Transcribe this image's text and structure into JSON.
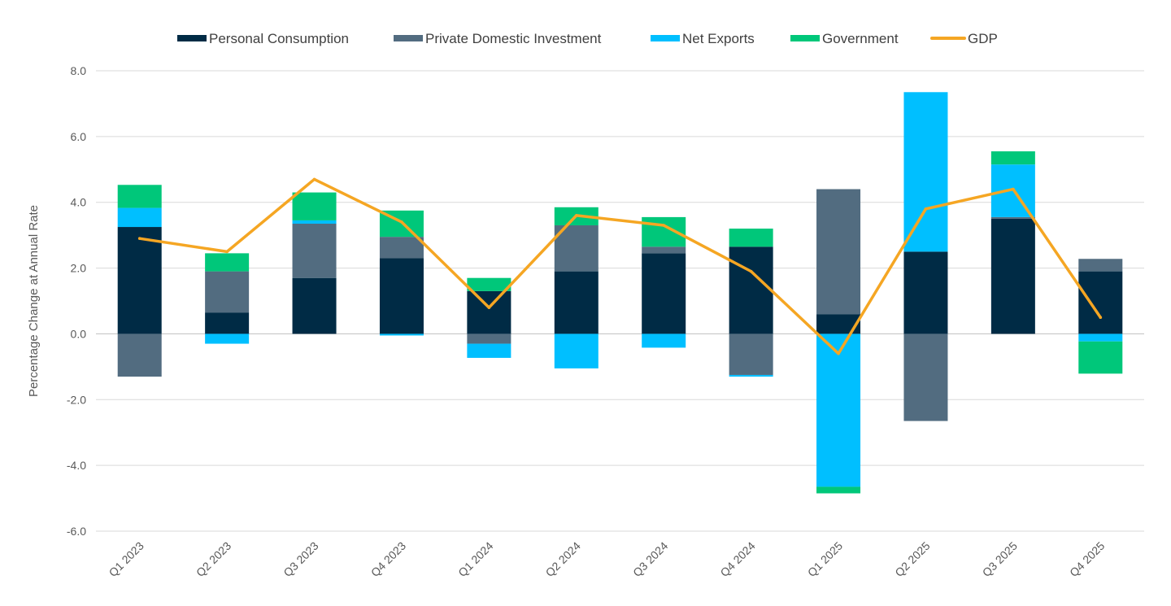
{
  "chart_data": {
    "type": "bar",
    "stacked": true,
    "title": "",
    "xlabel": "",
    "ylabel": "Percentage Change at Annual Rate",
    "ylim": [
      -6,
      8
    ],
    "yticks": [
      "8.0",
      "6.0",
      "4.0",
      "2.0",
      "0.0",
      "-2.0",
      "-4.0",
      "-6.0"
    ],
    "ytick_values": [
      8,
      6,
      4,
      2,
      0,
      -2,
      -4,
      -6
    ],
    "grid": true,
    "legend_position": "top",
    "categories": [
      "Q1 2023",
      "Q2 2023",
      "Q3 2023",
      "Q4 2023",
      "Q1 2024",
      "Q2 2024",
      "Q3 2024",
      "Q4 2024",
      "Q1 2025",
      "Q2 2025",
      "Q3 2025",
      "Q4 2025"
    ],
    "series": [
      {
        "name": "Personal Consumption",
        "kind": "bar",
        "color": "#002b45",
        "values": [
          3.25,
          0.65,
          1.7,
          2.3,
          1.3,
          1.9,
          2.45,
          2.65,
          0.6,
          2.5,
          3.5,
          1.9
        ]
      },
      {
        "name": "Private Domestic Investment",
        "kind": "bar",
        "color": "#526c80",
        "values": [
          -1.3,
          1.25,
          1.65,
          0.65,
          -0.3,
          1.4,
          0.2,
          -1.25,
          3.8,
          -2.65,
          0.05,
          0.38
        ]
      },
      {
        "name": "Net Exports",
        "kind": "bar",
        "color": "#00bfff",
        "values": [
          0.58,
          -0.3,
          0.1,
          -0.05,
          -0.43,
          -1.05,
          -0.42,
          -0.05,
          -4.65,
          4.85,
          1.6,
          -0.23
        ]
      },
      {
        "name": "Government",
        "kind": "bar",
        "color": "#00c77a",
        "values": [
          0.7,
          0.55,
          0.85,
          0.8,
          0.4,
          0.55,
          0.9,
          0.55,
          -0.2,
          0.0,
          0.4,
          -0.98
        ]
      },
      {
        "name": "GDP",
        "kind": "line",
        "color": "#f5a623",
        "values": [
          2.9,
          2.5,
          4.7,
          3.4,
          0.8,
          3.6,
          3.3,
          1.9,
          -0.6,
          3.8,
          4.4,
          0.5
        ]
      }
    ]
  },
  "colors": {
    "grid": "#d9d9d9",
    "zero_line": "#bfbfbf",
    "tick_text": "#595959",
    "legend_text": "#404040"
  }
}
